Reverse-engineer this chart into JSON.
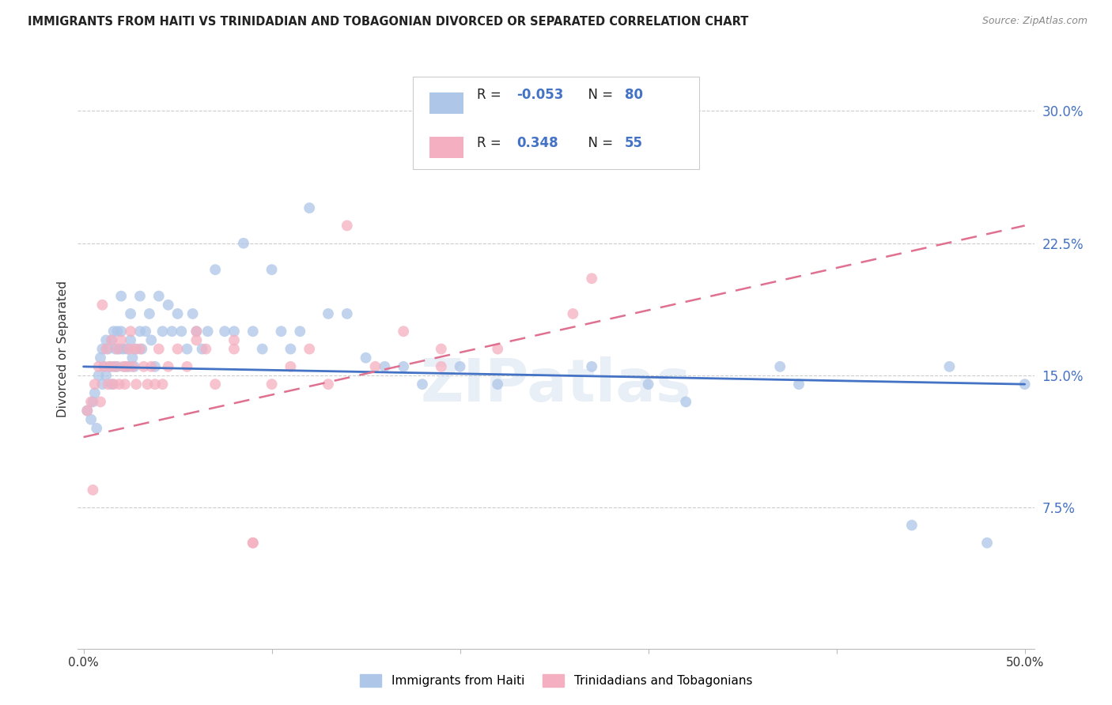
{
  "title": "IMMIGRANTS FROM HAITI VS TRINIDADIAN AND TOBAGONIAN DIVORCED OR SEPARATED CORRELATION CHART",
  "source": "Source: ZipAtlas.com",
  "ylabel": "Divorced or Separated",
  "ytick_labels": [
    "7.5%",
    "15.0%",
    "22.5%",
    "30.0%"
  ],
  "ytick_values": [
    0.075,
    0.15,
    0.225,
    0.3
  ],
  "xlim": [
    -0.003,
    0.505
  ],
  "ylim": [
    -0.005,
    0.335
  ],
  "xtick_positions": [
    0.0,
    0.1,
    0.2,
    0.3,
    0.4,
    0.5
  ],
  "legend_label1": "Immigrants from Haiti",
  "legend_label2": "Trinidadians and Tobagonians",
  "R1": -0.053,
  "N1": 80,
  "R2": 0.348,
  "N2": 55,
  "color_blue": "#aec6e8",
  "color_pink": "#f4afc0",
  "line_blue": "#4472c4",
  "line_pink": "#e07090",
  "haiti_x": [
    0.002,
    0.004,
    0.005,
    0.006,
    0.007,
    0.008,
    0.009,
    0.01,
    0.01,
    0.011,
    0.012,
    0.012,
    0.013,
    0.014,
    0.015,
    0.015,
    0.016,
    0.016,
    0.017,
    0.018,
    0.018,
    0.019,
    0.02,
    0.02,
    0.021,
    0.022,
    0.023,
    0.024,
    0.025,
    0.025,
    0.026,
    0.027,
    0.028,
    0.03,
    0.03,
    0.031,
    0.033,
    0.035,
    0.036,
    0.038,
    0.04,
    0.042,
    0.045,
    0.047,
    0.05,
    0.052,
    0.055,
    0.058,
    0.06,
    0.063,
    0.066,
    0.07,
    0.075,
    0.08,
    0.085,
    0.09,
    0.095,
    0.1,
    0.105,
    0.11,
    0.115,
    0.12,
    0.13,
    0.14,
    0.15,
    0.16,
    0.17,
    0.18,
    0.19,
    0.2,
    0.22,
    0.27,
    0.3,
    0.32,
    0.37,
    0.38,
    0.44,
    0.46,
    0.48,
    0.5
  ],
  "haiti_y": [
    0.13,
    0.125,
    0.135,
    0.14,
    0.12,
    0.15,
    0.16,
    0.165,
    0.145,
    0.155,
    0.17,
    0.15,
    0.165,
    0.155,
    0.17,
    0.145,
    0.175,
    0.155,
    0.165,
    0.175,
    0.155,
    0.165,
    0.195,
    0.175,
    0.165,
    0.155,
    0.165,
    0.155,
    0.185,
    0.17,
    0.16,
    0.155,
    0.165,
    0.195,
    0.175,
    0.165,
    0.175,
    0.185,
    0.17,
    0.155,
    0.195,
    0.175,
    0.19,
    0.175,
    0.185,
    0.175,
    0.165,
    0.185,
    0.175,
    0.165,
    0.175,
    0.21,
    0.175,
    0.175,
    0.225,
    0.175,
    0.165,
    0.21,
    0.175,
    0.165,
    0.175,
    0.245,
    0.185,
    0.185,
    0.16,
    0.155,
    0.155,
    0.145,
    0.27,
    0.155,
    0.145,
    0.155,
    0.145,
    0.135,
    0.155,
    0.145,
    0.065,
    0.155,
    0.055,
    0.145
  ],
  "tt_x": [
    0.002,
    0.004,
    0.005,
    0.006,
    0.008,
    0.009,
    0.01,
    0.011,
    0.012,
    0.013,
    0.014,
    0.015,
    0.016,
    0.017,
    0.018,
    0.019,
    0.02,
    0.021,
    0.022,
    0.023,
    0.024,
    0.025,
    0.026,
    0.027,
    0.028,
    0.03,
    0.032,
    0.034,
    0.036,
    0.038,
    0.04,
    0.042,
    0.045,
    0.05,
    0.055,
    0.06,
    0.065,
    0.07,
    0.08,
    0.09,
    0.1,
    0.11,
    0.12,
    0.13,
    0.14,
    0.155,
    0.17,
    0.19,
    0.22,
    0.26,
    0.27,
    0.19,
    0.09,
    0.08,
    0.06
  ],
  "tt_y": [
    0.13,
    0.135,
    0.085,
    0.145,
    0.155,
    0.135,
    0.19,
    0.155,
    0.165,
    0.145,
    0.155,
    0.17,
    0.145,
    0.155,
    0.165,
    0.145,
    0.17,
    0.155,
    0.145,
    0.155,
    0.165,
    0.175,
    0.155,
    0.165,
    0.145,
    0.165,
    0.155,
    0.145,
    0.155,
    0.145,
    0.165,
    0.145,
    0.155,
    0.165,
    0.155,
    0.17,
    0.165,
    0.145,
    0.17,
    0.055,
    0.145,
    0.155,
    0.165,
    0.145,
    0.235,
    0.155,
    0.175,
    0.165,
    0.165,
    0.185,
    0.205,
    0.155,
    0.055,
    0.165,
    0.175
  ],
  "blue_line_x": [
    0.0,
    0.5
  ],
  "blue_line_y": [
    0.155,
    0.145
  ],
  "pink_line_x": [
    0.0,
    0.5
  ],
  "pink_line_y": [
    0.115,
    0.235
  ]
}
